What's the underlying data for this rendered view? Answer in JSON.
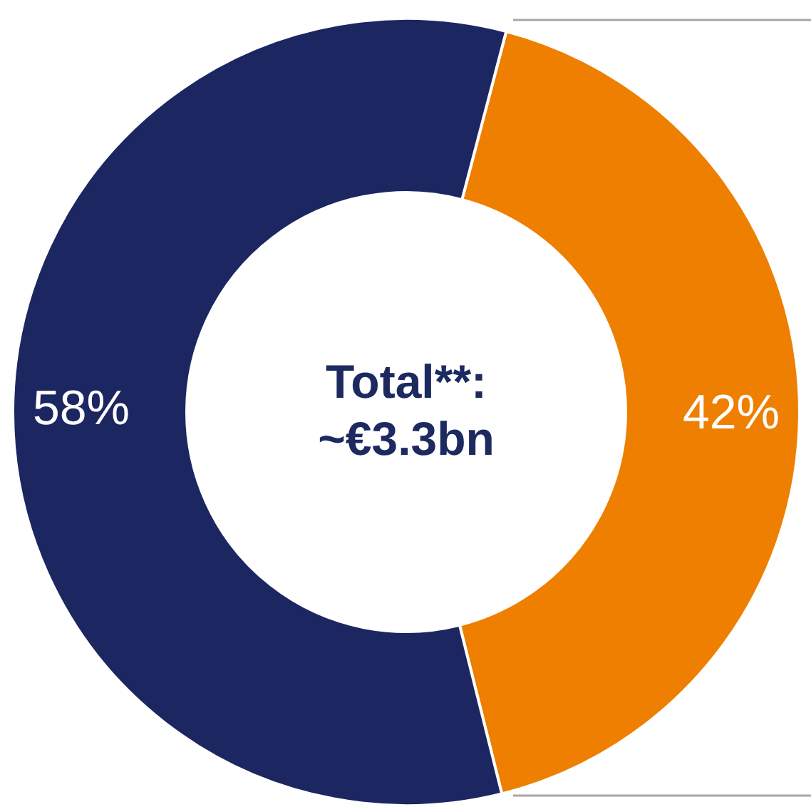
{
  "chart_data": {
    "type": "donut",
    "categories": [
      null,
      null
    ],
    "values": [
      42,
      58
    ],
    "colors": [
      "#ee7f00",
      "#1c2661"
    ],
    "value_labels": [
      "42%",
      "58%"
    ],
    "annotations": [
      "Total**:",
      "~€3.3bn"
    ]
  }
}
